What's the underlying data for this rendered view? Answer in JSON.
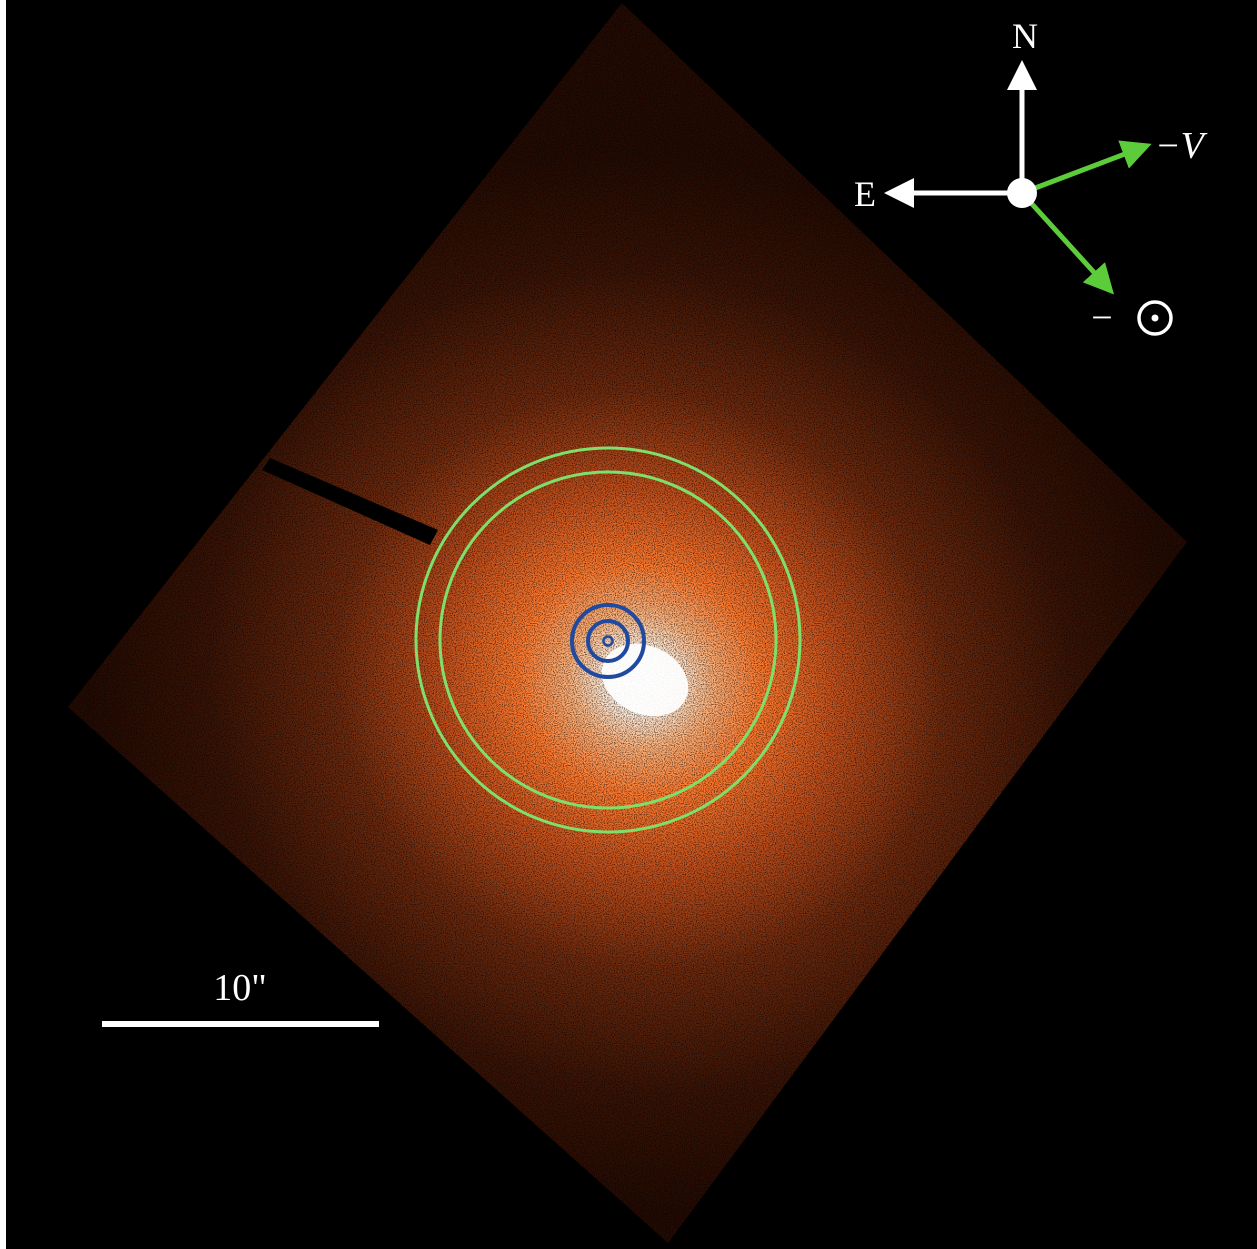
{
  "image": {
    "colors": {
      "background": "#000000",
      "coma_core": "#ffffff",
      "coma_mid": "#ff7a2e",
      "coma_outer": "#3a1406",
      "background_annulus": "#7ee06a",
      "aperture": "#1f4aa0",
      "compass": "#ffffff",
      "vector_arrows": "#5ccc3a"
    }
  },
  "compass": {
    "north_label": "N",
    "east_label": "E",
    "velocity_label": "−V",
    "sun_label": "−"
  },
  "scale_bar": {
    "label": "10\""
  }
}
